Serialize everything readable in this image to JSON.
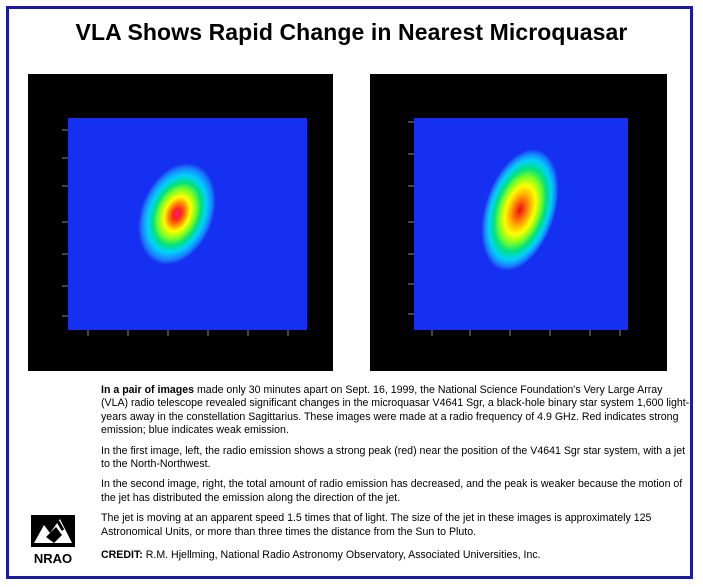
{
  "title": "VLA Shows Rapid Change in Nearest Microquasar",
  "caption": {
    "p1_bold": "In a pair of images",
    "p1_rest": " made only 30 minutes apart on Sept. 16, 1999, the National Science Foundation's Very Large Array (VLA) radio telescope revealed significant changes in the microquasar V4641 Sgr, a black-hole binary star system 1,600 light-years away in the constellation Sagittarius. These images were made at a radio frequency of 4.9 GHz. Red indicates strong emission; blue indicates weak emission.",
    "p2": "In the first image, left, the radio emission shows a strong peak (red) near the position of the V4641 Sgr star system, with a jet to the North-Northwest.",
    "p3": "In the second image, right, the total amount of radio emission has decreased, and the peak is weaker because the motion of the jet has distributed the emission along the direction of the jet.",
    "p4": "The jet is moving at an apparent speed 1.5 times that of light. The size of the jet in these images is approximately 125 Astronomical Units, or more than three times the distance from the Sun to Pluto."
  },
  "credit": {
    "label": "CREDIT:",
    "text": " R.M. Hjellming, National Radio Astronomy Observatory, Associated Universities, Inc."
  },
  "logo": {
    "text": "NRAO",
    "icon": "nrao-logo"
  },
  "colors": {
    "border": "#1a1aa6",
    "map_background": "#1530f0"
  }
}
